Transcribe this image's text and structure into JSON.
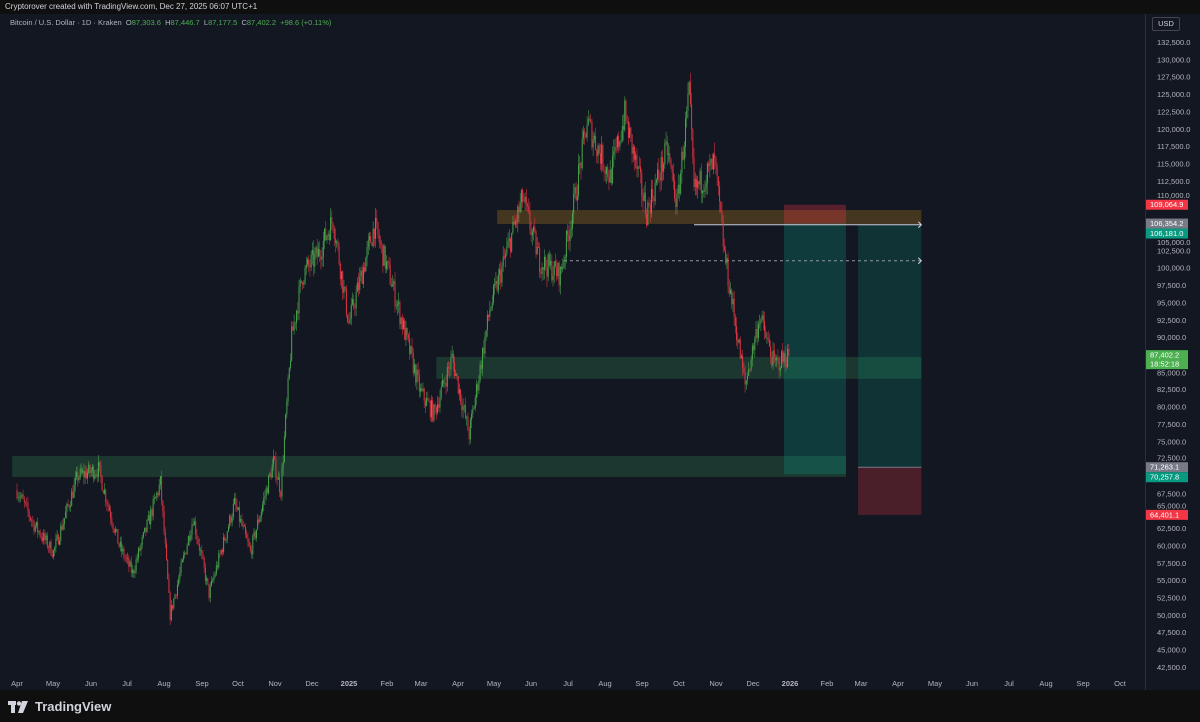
{
  "header": {
    "attribution": "Cryptorover created with TradingView.com, Dec 27, 2025 06:07 UTC+1"
  },
  "legend": {
    "symbol": "Bitcoin / U.S. Dollar · 1D · Kraken",
    "o_label": "O",
    "open": "87,303.6",
    "h_label": "H",
    "high": "87,446.7",
    "l_label": "L",
    "low": "87,177.5",
    "c_label": "C",
    "close": "87,402.2",
    "change": "+98.6 (+0.11%)"
  },
  "currency": "USD",
  "footer": {
    "brand": "TradingView"
  },
  "colors": {
    "up": "#4caf50",
    "down": "#f23645",
    "background": "#131722",
    "orange_zone": "#4a3a1f",
    "green_zone": "#1e3b31",
    "target_teal": "#0f3a3d",
    "stop_red": "#4a2029"
  },
  "chart_data": {
    "type": "candlestick",
    "timeframe": "1D",
    "ylim": [
      42500,
      132500
    ],
    "y_ticks": [
      "132,500.0",
      "130,000.0",
      "127,500.0",
      "125,000.0",
      "122,500.0",
      "120,000.0",
      "117,500.0",
      "115,000.0",
      "112,500.0",
      "110,000.0",
      "105,000.0",
      "102,500.0",
      "100,000.0",
      "97,500.0",
      "95,000.0",
      "92,500.0",
      "90,000.0",
      "85,000.0",
      "82,500.0",
      "80,000.0",
      "77,500.0",
      "75,000.0",
      "72,500.0",
      "67,500.0",
      "65,000.0",
      "62,500.0",
      "60,000.0",
      "57,500.0",
      "55,000.0",
      "52,500.0",
      "50,000.0",
      "47,500.0",
      "45,000.0",
      "42,500.0"
    ],
    "x_ticks": [
      "Apr",
      "May",
      "Jun",
      "Jul",
      "Aug",
      "Sep",
      "Oct",
      "Nov",
      "Dec",
      "2025",
      "Feb",
      "Mar",
      "Apr",
      "May",
      "Jun",
      "Jul",
      "Aug",
      "Sep",
      "Oct",
      "Nov",
      "Dec",
      "2026",
      "Feb",
      "Mar",
      "Apr",
      "May",
      "Jun",
      "Jul",
      "Aug",
      "Sep",
      "Oct"
    ],
    "x_range": [
      "2024-03-28",
      "2026-10-25"
    ],
    "approx_close_path": [
      [
        "2024-04-01",
        68000
      ],
      [
        "2024-04-15",
        63000
      ],
      [
        "2024-05-01",
        59000
      ],
      [
        "2024-05-21",
        70000
      ],
      [
        "2024-06-07",
        71000
      ],
      [
        "2024-06-24",
        60000
      ],
      [
        "2024-07-05",
        56000
      ],
      [
        "2024-07-28",
        69000
      ],
      [
        "2024-08-05",
        50000
      ],
      [
        "2024-08-24",
        64000
      ],
      [
        "2024-09-06",
        53000
      ],
      [
        "2024-09-27",
        66000
      ],
      [
        "2024-10-10",
        59000
      ],
      [
        "2024-10-29",
        72000
      ],
      [
        "2024-11-04",
        68000
      ],
      [
        "2024-11-13",
        90000
      ],
      [
        "2024-11-22",
        99000
      ],
      [
        "2024-12-05",
        102000
      ],
      [
        "2024-12-17",
        107000
      ],
      [
        "2024-12-30",
        92000
      ],
      [
        "2025-01-20",
        106000
      ],
      [
        "2025-02-03",
        98000
      ],
      [
        "2025-02-27",
        82000
      ],
      [
        "2025-03-10",
        79000
      ],
      [
        "2025-03-25",
        87000
      ],
      [
        "2025-04-08",
        76000
      ],
      [
        "2025-04-25",
        94000
      ],
      [
        "2025-05-22",
        110000
      ],
      [
        "2025-06-05",
        101000
      ],
      [
        "2025-06-22",
        99000
      ],
      [
        "2025-07-03",
        109000
      ],
      [
        "2025-07-14",
        121000
      ],
      [
        "2025-08-02",
        113000
      ],
      [
        "2025-08-14",
        122000
      ],
      [
        "2025-09-01",
        108000
      ],
      [
        "2025-09-18",
        117000
      ],
      [
        "2025-09-26",
        109000
      ],
      [
        "2025-10-06",
        125000
      ],
      [
        "2025-10-10",
        111000
      ],
      [
        "2025-10-27",
        115000
      ],
      [
        "2025-11-04",
        102000
      ],
      [
        "2025-11-21",
        83000
      ],
      [
        "2025-12-03",
        93000
      ],
      [
        "2025-12-15",
        86000
      ],
      [
        "2025-12-27",
        87402
      ]
    ],
    "zones": [
      {
        "kind": "resistance",
        "from": 106290,
        "to": 108300,
        "start": "2025-05-01",
        "end": "2026-04-15",
        "color": "#4a3a1f"
      },
      {
        "kind": "support",
        "from": 84000,
        "to": 87140,
        "start": "2025-03-12",
        "end": "2026-04-15",
        "color": "#1e3b31"
      },
      {
        "kind": "support",
        "from": 69860,
        "to": 72880,
        "start": "2024-03-28",
        "end": "2026-02-12",
        "color": "#1e3b31"
      }
    ],
    "lines": [
      {
        "style": "solid-arrow",
        "price": 106181,
        "start": "2025-10-10",
        "end": "2026-04-15"
      },
      {
        "style": "dashed-arrow",
        "price": 101000,
        "start": "2025-06-25",
        "end": "2026-04-15"
      }
    ],
    "positions": [
      {
        "type": "short",
        "entry": 106354.2,
        "stop": 109064.9,
        "target": 70257.8,
        "start": "2025-12-23",
        "end": "2026-02-12"
      },
      {
        "type": "long",
        "entry": 71263.1,
        "stop": 64401.1,
        "target": 106181.0,
        "start": "2026-02-22",
        "end": "2026-04-15"
      }
    ],
    "price_labels": [
      {
        "text": "109,064.9",
        "price": 109064.9,
        "color": "#f23645"
      },
      {
        "text": "106,354.2",
        "price": 106354.2,
        "color": "#787b86"
      },
      {
        "text": "106,181.0",
        "price": 106181.0,
        "color": "#089981"
      },
      {
        "text": "87,402.2",
        "sub": "18:52:18",
        "price": 87402.2,
        "color": "#4caf50"
      },
      {
        "text": "71,263.1",
        "price": 71263.1,
        "color": "#787b86"
      },
      {
        "text": "70,257.8",
        "price": 70257.8,
        "color": "#089981"
      },
      {
        "text": "64,401.1",
        "price": 64401.1,
        "color": "#f23645"
      }
    ]
  }
}
